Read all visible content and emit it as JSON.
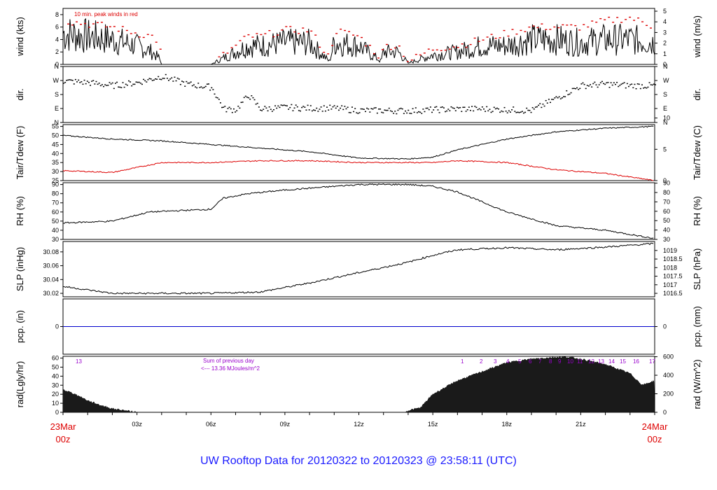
{
  "footer": {
    "title": "UW Rooftop Data for 20120322  to  20120323 @ 23:58:11  (UTC)"
  },
  "colors": {
    "primary": "#000000",
    "red": "#dd0000",
    "blue": "#1a1aff",
    "purple": "#9900cc",
    "pcp": "#0000cc"
  },
  "time_axis": {
    "ticks": [
      "03z",
      "06z",
      "09z",
      "12z",
      "15z",
      "18z",
      "21z"
    ],
    "start": {
      "date": "23Mar",
      "time": "00z"
    },
    "end": {
      "date": "24Mar",
      "time": "00z"
    }
  },
  "chart_data": [
    {
      "id": "wind",
      "type": "line",
      "ylabel": "wind (kts)",
      "ylabel_right": "wind (m/s)",
      "yticks": [
        0,
        2,
        4,
        6,
        8
      ],
      "yticks_right": [
        0,
        1,
        2,
        3,
        4,
        5
      ],
      "ylim": [
        0,
        9
      ],
      "annotation": "10 min. peak winds in red",
      "x_hours": [
        0,
        1,
        2,
        3,
        3.6,
        3.9,
        4,
        5,
        6,
        7.5,
        8,
        9,
        10,
        10.8,
        11,
        12,
        12.9,
        13,
        13.6,
        14,
        15,
        16,
        17,
        18,
        19,
        20,
        21,
        22,
        23,
        24
      ],
      "values": [
        5,
        4.5,
        4,
        3,
        2,
        1,
        0,
        0,
        0,
        3,
        3,
        3.5,
        3.5,
        0.5,
        3.5,
        3,
        0.5,
        2,
        2,
        0.2,
        1.5,
        2,
        3,
        3,
        4,
        4,
        3.5,
        4,
        4,
        3.5
      ],
      "peak_values": [
        7,
        6.5,
        6,
        5,
        4.5,
        3.5,
        0,
        0,
        0,
        4.5,
        4.5,
        5.5,
        5.5,
        1,
        5.5,
        4.5,
        1,
        3,
        3,
        0.5,
        2.5,
        3,
        4,
        5,
        6,
        6,
        6,
        7,
        7.5,
        6
      ]
    },
    {
      "id": "dir",
      "type": "scatter",
      "ylabel": "dir.",
      "ylabel_right": "dir.",
      "ytick_labels": [
        "N",
        "E",
        "S",
        "W",
        "N"
      ],
      "ylim": [
        0,
        360
      ],
      "x_hours": [
        0,
        1,
        2,
        3,
        4,
        5,
        6,
        6.5,
        7,
        7.5,
        8,
        9,
        10,
        11,
        12,
        13,
        14,
        15,
        16,
        17,
        18,
        19,
        20,
        21,
        22,
        23,
        24
      ],
      "values": [
        270,
        260,
        240,
        260,
        300,
        250,
        230,
        90,
        85,
        180,
        90,
        100,
        95,
        95,
        80,
        80,
        78,
        85,
        90,
        90,
        85,
        80,
        160,
        240,
        250,
        240,
        240
      ]
    },
    {
      "id": "temp",
      "type": "line",
      "ylabel": "Tair/Tdew (F)",
      "ylabel_right": "Tair/Tdew (C)",
      "yticks": [
        25,
        30,
        35,
        40,
        45,
        50,
        55
      ],
      "yticks_right": [
        0,
        5,
        10
      ],
      "ylim": [
        25,
        56
      ],
      "x_hours": [
        0,
        2,
        4,
        6,
        8,
        10,
        12,
        14,
        15,
        16,
        18,
        20,
        22,
        24
      ],
      "series": [
        {
          "values": [
            50,
            48,
            47,
            45,
            43,
            41,
            37.5,
            37,
            38,
            42,
            48,
            52,
            54,
            55
          ]
        },
        {
          "values": [
            30.5,
            29.5,
            35,
            35,
            36,
            36,
            35,
            35,
            35,
            36,
            35,
            31,
            29,
            25
          ]
        }
      ]
    },
    {
      "id": "rh",
      "type": "line",
      "ylabel": "RH (%)",
      "ylabel_right": "RH (%)",
      "yticks": [
        30,
        40,
        50,
        60,
        70,
        80,
        90
      ],
      "yticks_right": [
        30,
        40,
        50,
        60,
        70,
        80,
        90
      ],
      "ylim": [
        30,
        92
      ],
      "x_hours": [
        0,
        2,
        3.5,
        6,
        6.5,
        7.5,
        9,
        12,
        14,
        15,
        16,
        18,
        20,
        22,
        24
      ],
      "values": [
        48,
        50,
        60,
        63,
        75,
        80,
        84,
        90,
        90,
        88,
        82,
        60,
        45,
        40,
        31
      ]
    },
    {
      "id": "slp",
      "type": "line",
      "ylabel": "SLP (inHg)",
      "ylabel_right": "SLP (hPa)",
      "yticks": [
        30.02,
        30.04,
        30.06,
        30.08
      ],
      "yticks_right": [
        1016.5,
        1017,
        1017.5,
        1018,
        1018.5,
        1019
      ],
      "ylim": [
        30.015,
        30.095
      ],
      "x_hours": [
        0,
        1,
        2,
        3,
        6,
        8,
        10,
        12,
        14,
        15,
        16,
        18,
        20,
        22,
        24
      ],
      "values": [
        30.03,
        30.025,
        30.02,
        30.02,
        30.02,
        30.022,
        30.035,
        30.05,
        30.065,
        30.075,
        30.083,
        30.086,
        30.083,
        30.087,
        30.092
      ]
    },
    {
      "id": "pcp",
      "type": "line",
      "ylabel": "pcp. (in)",
      "ylabel_right": "pcp. (mm)",
      "yticks": [
        0
      ],
      "yticks_right": [
        0
      ],
      "ylim": [
        -1,
        1
      ],
      "x_hours": [
        0,
        24
      ],
      "values": [
        0,
        0
      ]
    },
    {
      "id": "rad",
      "type": "area",
      "ylabel": "rad(Lgly/hr)",
      "ylabel_right": "rad (W/m^2)",
      "yticks": [
        0,
        10,
        20,
        30,
        40,
        50,
        60
      ],
      "yticks_right": [
        0,
        200,
        400,
        600
      ],
      "ylim": [
        0,
        62
      ],
      "x_hours": [
        0,
        0.5,
        1,
        1.5,
        2,
        2.5,
        3,
        13.9,
        14,
        14.5,
        15,
        16,
        17,
        18,
        19,
        20,
        20.5,
        21,
        22,
        23,
        23.5,
        24
      ],
      "values": [
        25,
        20,
        13,
        8,
        4,
        2,
        0,
        0,
        2,
        5,
        20,
        35,
        45,
        55,
        59,
        61,
        61,
        59,
        53,
        43,
        30,
        35
      ],
      "annotation_lines": [
        "Sum of previous day",
        "<--- 13.36 MJoules/m^2"
      ],
      "hour_labels": [
        "13",
        "1",
        "2",
        "3",
        "4",
        "5",
        "6",
        "7",
        "8",
        "9",
        "10",
        "11",
        "12",
        "13",
        "14",
        "15",
        "16",
        "17"
      ]
    }
  ]
}
